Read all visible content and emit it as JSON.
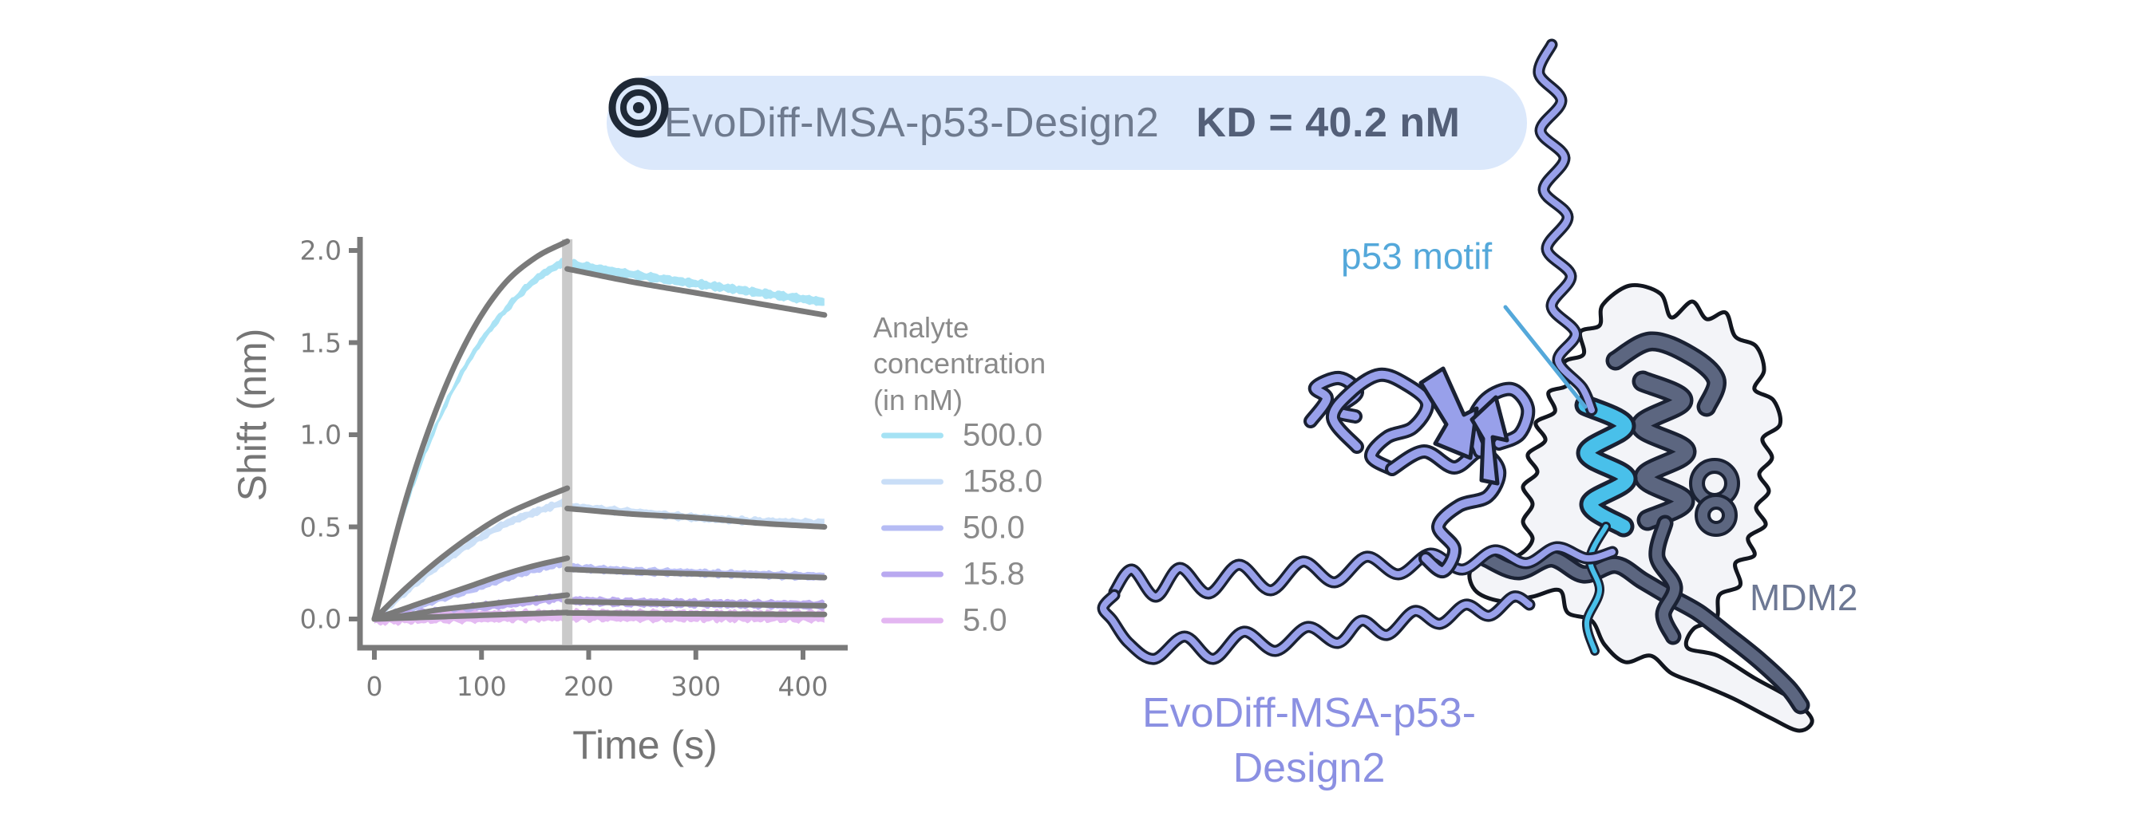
{
  "badge": {
    "icon": "target-icon",
    "name": "EvoDiff-MSA-p53-Design2",
    "kd": "KD = 40.2 nM",
    "bg_color": "#dbe8fb",
    "name_color": "#6e7a8e",
    "kd_color": "#535f78",
    "icon_color": "#1f2937"
  },
  "chart_data": {
    "type": "line",
    "title": "",
    "xlabel": "Time (s)",
    "ylabel": "Shift (nm)",
    "xlim": [
      -12,
      440
    ],
    "ylim": [
      -0.19,
      2.2
    ],
    "x_ticks": [
      0,
      100,
      200,
      300,
      400
    ],
    "y_ticks": [
      0.0,
      0.5,
      1.0,
      1.5,
      2.0
    ],
    "grid": false,
    "axis_color": "#7a7a7a",
    "fit_color": "#7a7a7a",
    "association_end": {
      "time_s": 180,
      "marker_color": "#cacaca"
    },
    "legend": {
      "title": "Analyte\nconcentration\n(in nM)",
      "position": "right",
      "text_color": "#8a8a8a"
    },
    "t_assoc": [
      0,
      30,
      60,
      90,
      120,
      150,
      180
    ],
    "t_dissoc": [
      180,
      240,
      300,
      360,
      420
    ],
    "series": [
      {
        "name": "500.0",
        "color": "#a5e2f4",
        "noise": 0.02,
        "assoc": [
          0,
          0.62,
          1.08,
          1.42,
          1.66,
          1.84,
          1.95
        ],
        "fit_assoc": [
          0,
          0.66,
          1.17,
          1.55,
          1.81,
          1.96,
          2.05
        ],
        "dissoc": [
          1.93,
          1.87,
          1.82,
          1.77,
          1.72
        ],
        "fit_dissoc": [
          1.9,
          1.83,
          1.77,
          1.71,
          1.65
        ]
      },
      {
        "name": "158.0",
        "color": "#c9def7",
        "noise": 0.018,
        "assoc": [
          0,
          0.15,
          0.29,
          0.41,
          0.51,
          0.58,
          0.64
        ],
        "fit_assoc": [
          0,
          0.17,
          0.32,
          0.45,
          0.56,
          0.64,
          0.71
        ],
        "dissoc": [
          0.61,
          0.58,
          0.55,
          0.53,
          0.52
        ],
        "fit_dissoc": [
          0.6,
          0.57,
          0.55,
          0.52,
          0.5
        ]
      },
      {
        "name": "50.0",
        "color": "#b6bcf4",
        "noise": 0.018,
        "assoc": [
          0,
          0.05,
          0.11,
          0.16,
          0.22,
          0.27,
          0.31
        ],
        "fit_assoc": [
          0,
          0.06,
          0.12,
          0.18,
          0.24,
          0.29,
          0.33
        ],
        "dissoc": [
          0.28,
          0.26,
          0.25,
          0.24,
          0.23
        ],
        "fit_dissoc": [
          0.27,
          0.255,
          0.245,
          0.235,
          0.225
        ]
      },
      {
        "name": "15.8",
        "color": "#b9a9f0",
        "noise": 0.02,
        "assoc": [
          0,
          0.02,
          0.04,
          0.06,
          0.08,
          0.1,
          0.12
        ],
        "fit_assoc": [
          0,
          0.02,
          0.05,
          0.07,
          0.09,
          0.11,
          0.13
        ],
        "dissoc": [
          0.1,
          0.09,
          0.085,
          0.08,
          0.075
        ],
        "fit_dissoc": [
          0.095,
          0.088,
          0.082,
          0.077,
          0.072
        ]
      },
      {
        "name": "5.0",
        "color": "#e3b6f1",
        "noise": 0.028,
        "assoc": [
          0,
          0.005,
          0.01,
          0.012,
          0.015,
          0.018,
          0.02
        ],
        "fit_assoc": [
          0,
          0.006,
          0.012,
          0.018,
          0.024,
          0.03,
          0.035
        ],
        "dissoc": [
          0.02,
          0.018,
          0.016,
          0.015,
          0.015
        ],
        "fit_dissoc": [
          0.033,
          0.03,
          0.028,
          0.026,
          0.025
        ]
      }
    ]
  },
  "structure": {
    "labels": {
      "p53_motif": "p53 motif",
      "mdm2": "MDM2",
      "design_line1": "EvoDiff-MSA-p53-",
      "design_line2": "Design2"
    },
    "colors": {
      "design_chain": "#98a0ea",
      "chain_outline": "#1a2133",
      "mdm2_surface": "#f3f4f8",
      "mdm2_surface_outline": "#12161f",
      "mdm2_ribbon": "#5c6680",
      "p53_helix": "#49c0ea",
      "p53_label": "#54a8da",
      "mdm2_label": "#6d7894",
      "design_label": "#8b90e2",
      "leader_line": "#54a8da"
    }
  }
}
